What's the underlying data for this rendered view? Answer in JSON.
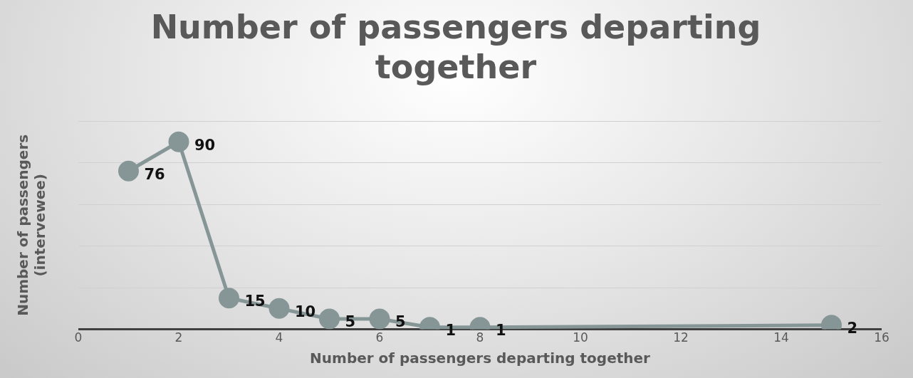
{
  "chart_data": {
    "type": "line",
    "title": "Number of passengers departing together",
    "xlabel": "Number of passengers departing together",
    "ylabel": "Number of passengers (intervewee)",
    "x": [
      1,
      2,
      3,
      4,
      5,
      6,
      7,
      8,
      15
    ],
    "series": [
      {
        "color": "#869696",
        "values": [
          76,
          90,
          15,
          10,
          5,
          5,
          1,
          1,
          2
        ]
      }
    ],
    "xlim": [
      0,
      16
    ],
    "xticks": [
      0,
      2,
      4,
      6,
      8,
      10,
      12,
      14,
      16
    ],
    "ylim": [
      0,
      100
    ],
    "yticks": [
      {
        "value": 0,
        "label": null
      },
      {
        "value": 20,
        "label": null
      },
      {
        "value": 40,
        "label": null
      },
      {
        "value": 60,
        "label": null
      },
      {
        "value": 80,
        "label": null
      },
      {
        "value": 100,
        "label": null
      }
    ],
    "tick_labels": "x",
    "grid": "y",
    "marker": "circle",
    "line_style": "solid",
    "data_labels": true,
    "legend": false
  }
}
